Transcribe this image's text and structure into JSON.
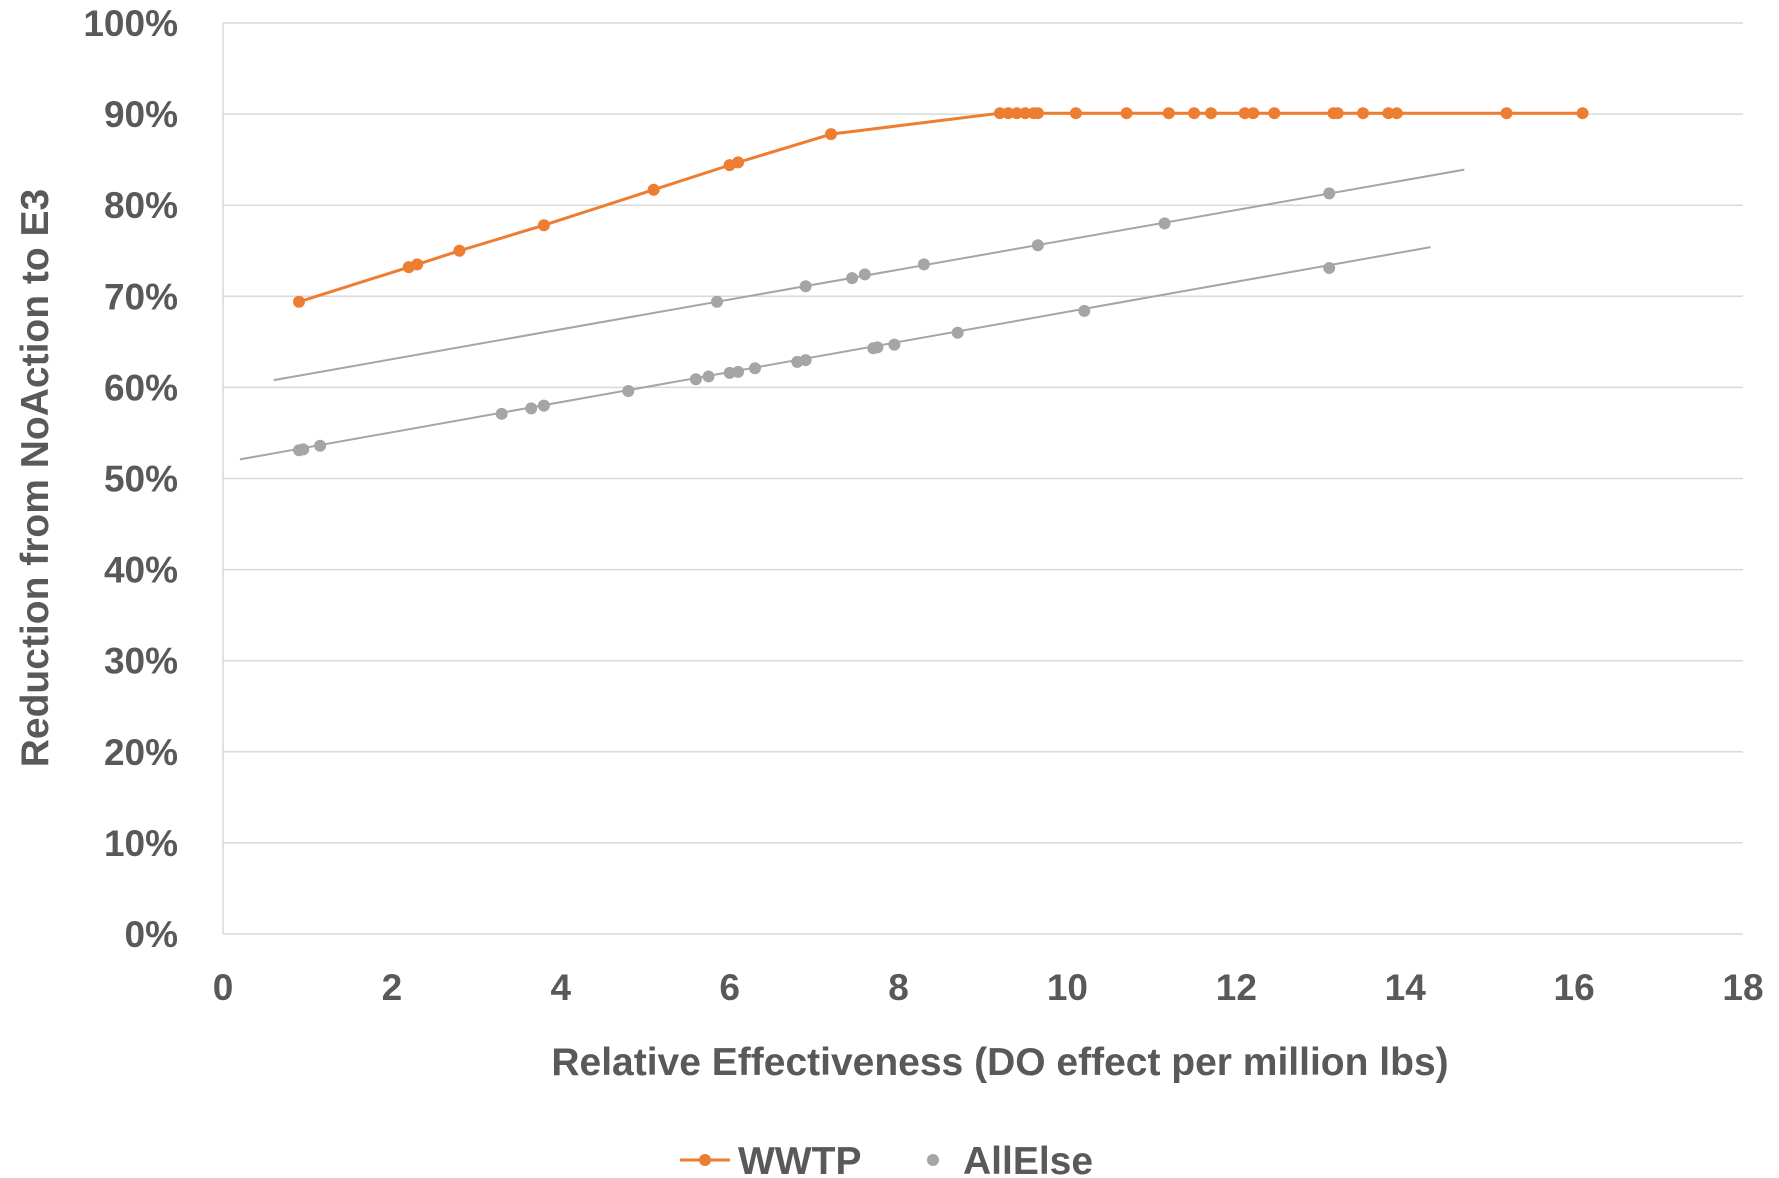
{
  "chart_data": {
    "type": "scatter",
    "title": "",
    "xlabel": "Relative Effectiveness (DO effect per million lbs)",
    "ylabel": "Reduction from NoAction to E3",
    "xlim": [
      0,
      18
    ],
    "ylim": [
      0,
      1
    ],
    "x_ticks": [
      "0",
      "2",
      "4",
      "6",
      "8",
      "10",
      "12",
      "14",
      "16",
      "18"
    ],
    "y_ticks": [
      "0%",
      "10%",
      "20%",
      "30%",
      "40%",
      "50%",
      "60%",
      "70%",
      "80%",
      "90%",
      "100%"
    ],
    "grid": "horizontal",
    "legend_position": "bottom",
    "series": [
      {
        "name": "WWTP",
        "color": "#ed7d31",
        "style": "line-markers",
        "points": [
          [
            0.9,
            0.694
          ],
          [
            2.2,
            0.732
          ],
          [
            2.3,
            0.735
          ],
          [
            2.8,
            0.75
          ],
          [
            3.8,
            0.778
          ],
          [
            5.1,
            0.817
          ],
          [
            6.0,
            0.844
          ],
          [
            6.1,
            0.847
          ],
          [
            7.2,
            0.878
          ],
          [
            9.2,
            0.901
          ],
          [
            9.3,
            0.901
          ],
          [
            9.4,
            0.901
          ],
          [
            9.5,
            0.901
          ],
          [
            9.6,
            0.901
          ],
          [
            9.65,
            0.901
          ],
          [
            10.1,
            0.901
          ],
          [
            10.7,
            0.901
          ],
          [
            11.2,
            0.901
          ],
          [
            11.5,
            0.901
          ],
          [
            11.7,
            0.901
          ],
          [
            12.1,
            0.901
          ],
          [
            12.2,
            0.901
          ],
          [
            12.45,
            0.901
          ],
          [
            13.15,
            0.901
          ],
          [
            13.2,
            0.901
          ],
          [
            13.5,
            0.901
          ],
          [
            13.8,
            0.901
          ],
          [
            13.9,
            0.901
          ],
          [
            15.2,
            0.901
          ],
          [
            16.1,
            0.901
          ]
        ]
      },
      {
        "name": "AllElse",
        "color": "#a5a5a5",
        "style": "markers",
        "points": [
          [
            5.85,
            0.694
          ],
          [
            6.9,
            0.711
          ],
          [
            7.45,
            0.72
          ],
          [
            7.6,
            0.724
          ],
          [
            8.3,
            0.735
          ],
          [
            9.65,
            0.756
          ],
          [
            11.15,
            0.78
          ],
          [
            13.1,
            0.813
          ],
          [
            0.9,
            0.531
          ],
          [
            0.95,
            0.532
          ],
          [
            1.15,
            0.536
          ],
          [
            3.3,
            0.571
          ],
          [
            3.65,
            0.577
          ],
          [
            3.8,
            0.58
          ],
          [
            4.8,
            0.596
          ],
          [
            5.6,
            0.609
          ],
          [
            5.75,
            0.612
          ],
          [
            6.0,
            0.616
          ],
          [
            6.1,
            0.617
          ],
          [
            6.3,
            0.621
          ],
          [
            6.8,
            0.628
          ],
          [
            6.9,
            0.63
          ],
          [
            7.7,
            0.643
          ],
          [
            7.75,
            0.644
          ],
          [
            7.95,
            0.647
          ],
          [
            8.7,
            0.66
          ],
          [
            10.2,
            0.684
          ],
          [
            13.1,
            0.731
          ]
        ]
      }
    ],
    "trendlines": [
      {
        "series": "AllElse",
        "color": "#a5a5a5",
        "x": [
          0.6,
          14.7
        ],
        "y": [
          0.608,
          0.839
        ]
      },
      {
        "series": "AllElse",
        "color": "#a5a5a5",
        "x": [
          0.2,
          14.3
        ],
        "y": [
          0.521,
          0.754
        ]
      }
    ]
  }
}
